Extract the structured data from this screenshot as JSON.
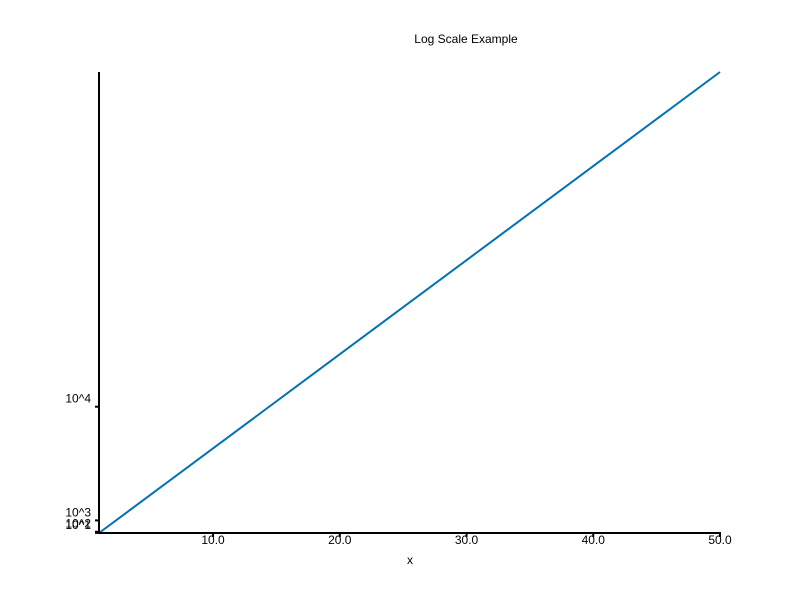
{
  "chart_data": {
    "type": "line",
    "title": "Log Scale Example",
    "xlabel": "x",
    "ylabel": "",
    "xscale": "linear",
    "yscale": "linear",
    "grid": false,
    "xlim": [
      1,
      50
    ],
    "ylim": [
      1,
      36500
    ],
    "xticks": [
      {
        "value": 10,
        "label": "10.0"
      },
      {
        "value": 20,
        "label": "20.0"
      },
      {
        "value": 30,
        "label": "30.0"
      },
      {
        "value": 40,
        "label": "40.0"
      },
      {
        "value": 50,
        "label": "50.0"
      }
    ],
    "yticks": [
      {
        "value": 10,
        "label": "10^1"
      },
      {
        "value": 100,
        "label": "10^2"
      },
      {
        "value": 1000,
        "label": "10^3"
      },
      {
        "value": 10000,
        "label": "10^4"
      }
    ],
    "series": [
      {
        "color": "#0072b2",
        "x": [
          1,
          50
        ],
        "y": [
          1,
          36500
        ]
      }
    ]
  }
}
